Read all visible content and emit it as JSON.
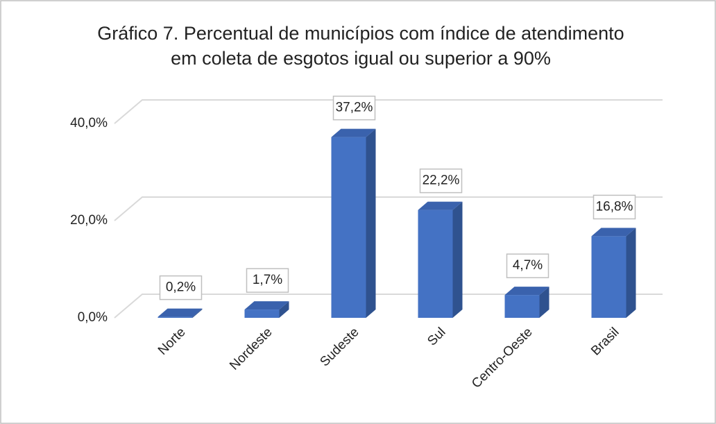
{
  "chart_data": {
    "type": "bar3d",
    "title": "Gráfico 7. Percentual de municípios com índice de atendimento em coleta de esgotos igual ou superior a 90%",
    "categories": [
      "Norte",
      "Nordeste",
      "Sudeste",
      "Sul",
      "Centro-Oeste",
      "Brasil"
    ],
    "values": [
      0.2,
      1.7,
      37.2,
      22.2,
      4.7,
      16.8
    ],
    "value_labels": [
      "0,2%",
      "1,7%",
      "37,2%",
      "22,2%",
      "4,7%",
      "16,8%"
    ],
    "color": "#4472c4",
    "ylim": [
      0,
      40
    ],
    "yticks": [
      {
        "value": 0,
        "label": "0,0%"
      },
      {
        "value": 20,
        "label": "20,0%"
      },
      {
        "value": 40,
        "label": "40,0%"
      }
    ],
    "grid": true
  }
}
